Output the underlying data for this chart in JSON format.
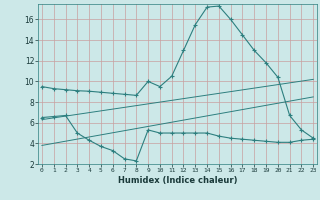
{
  "xlabel": "Humidex (Indice chaleur)",
  "curve1_x": [
    0,
    1,
    2,
    3,
    4,
    5,
    6,
    7,
    8,
    9,
    10,
    11,
    12,
    13,
    14,
    15,
    16,
    17,
    18,
    19,
    20,
    21,
    22,
    23
  ],
  "curve1_y": [
    9.5,
    9.3,
    9.2,
    9.1,
    9.05,
    8.95,
    8.85,
    8.75,
    8.65,
    10.0,
    9.5,
    10.5,
    13.0,
    15.5,
    17.2,
    17.3,
    16.0,
    14.5,
    13.0,
    11.8,
    10.4,
    6.7,
    5.3,
    4.5
  ],
  "curve2_x": [
    0,
    1,
    2,
    3,
    4,
    5,
    6,
    7,
    8,
    9,
    10,
    11,
    12,
    13,
    14,
    15,
    16,
    17,
    18,
    19,
    20,
    21,
    22,
    23
  ],
  "curve2_y": [
    6.5,
    6.6,
    6.7,
    5.0,
    4.3,
    3.7,
    3.3,
    2.5,
    2.3,
    5.3,
    5.0,
    5.0,
    5.0,
    5.0,
    5.0,
    4.7,
    4.5,
    4.4,
    4.3,
    4.2,
    4.1,
    4.1,
    4.3,
    4.4
  ],
  "curve3_x": [
    0,
    23
  ],
  "curve3_y": [
    3.8,
    8.5
  ],
  "curve4_x": [
    0,
    23
  ],
  "curve4_y": [
    6.3,
    10.2
  ],
  "color": "#2d7f7f",
  "bg_color": "#cce8e8",
  "grid_color_h": "#c8a0a0",
  "grid_color_v": "#c8a0a0",
  "ylim": [
    2,
    17.5
  ],
  "yticks": [
    2,
    4,
    6,
    8,
    10,
    12,
    14,
    16
  ],
  "xticks": [
    0,
    1,
    2,
    3,
    4,
    5,
    6,
    7,
    8,
    9,
    10,
    11,
    12,
    13,
    14,
    15,
    16,
    17,
    18,
    19,
    20,
    21,
    22,
    23
  ],
  "xlim": [
    -0.3,
    23.3
  ]
}
